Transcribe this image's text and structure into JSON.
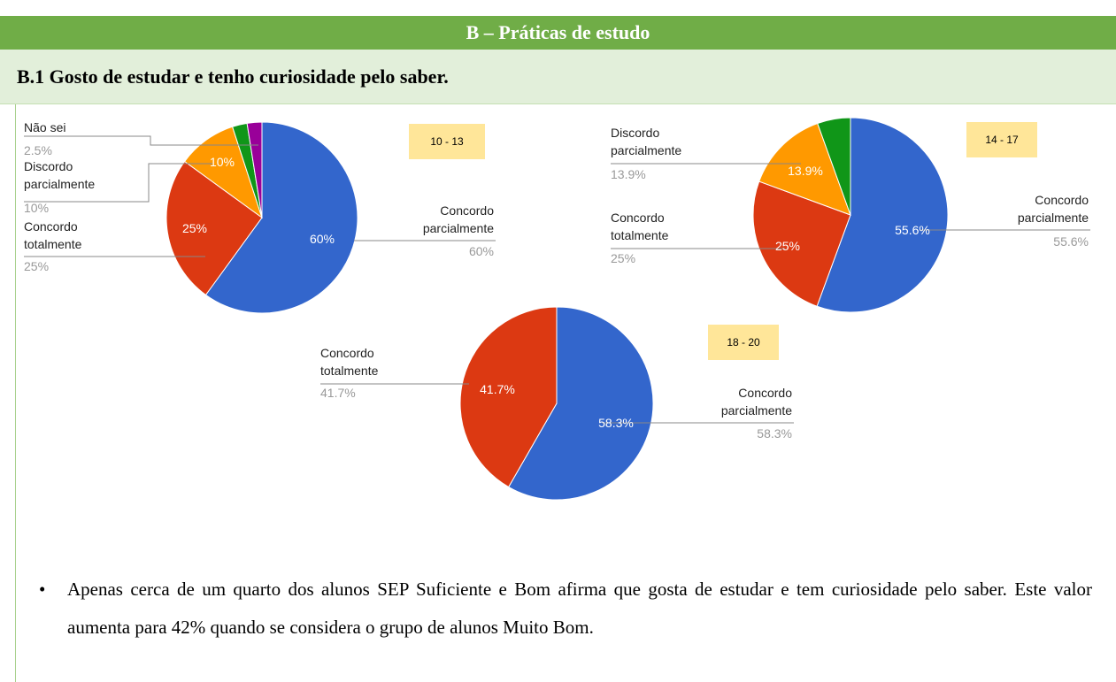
{
  "header": {
    "title": "B – Práticas de estudo",
    "subtitle": "B.1 Gosto de estudar e tenho curiosidade pelo saber."
  },
  "chart_data": [
    {
      "type": "pie",
      "title": "10 - 13",
      "categories": [
        "Concordo parcialmente",
        "Concordo totalmente",
        "Discordo parcialmente",
        null,
        "Não sei"
      ],
      "values": [
        60,
        25,
        10,
        2.5,
        2.5
      ],
      "value_labels": [
        "60%",
        "25%",
        "10%",
        null,
        "2.5%"
      ],
      "colors": [
        "#3366cc",
        "#dc3912",
        "#ff9900",
        "#109618",
        "#990099"
      ]
    },
    {
      "type": "pie",
      "title": "14 - 17",
      "categories": [
        "Concordo parcialmente",
        "Concordo totalmente",
        "Discordo parcialmente",
        null
      ],
      "values": [
        55.6,
        25,
        13.9,
        5.5
      ],
      "value_labels": [
        "55.6%",
        "25%",
        "13.9%",
        null
      ],
      "colors": [
        "#3366cc",
        "#dc3912",
        "#ff9900",
        "#109618"
      ]
    },
    {
      "type": "pie",
      "title": "18 - 20",
      "categories": [
        "Concordo parcialmente",
        "Concordo totalmente"
      ],
      "values": [
        58.3,
        41.7
      ],
      "value_labels": [
        "58.3%",
        "41.7%"
      ],
      "colors": [
        "#3366cc",
        "#dc3912"
      ]
    }
  ],
  "paragraph": "Apenas cerca de um quarto dos alunos SEP Suficiente e Bom afirma que gosta de estudar e tem curiosidade pelo saber. Este valor aumenta para 42% quando se considera o grupo de alunos Muito Bom."
}
